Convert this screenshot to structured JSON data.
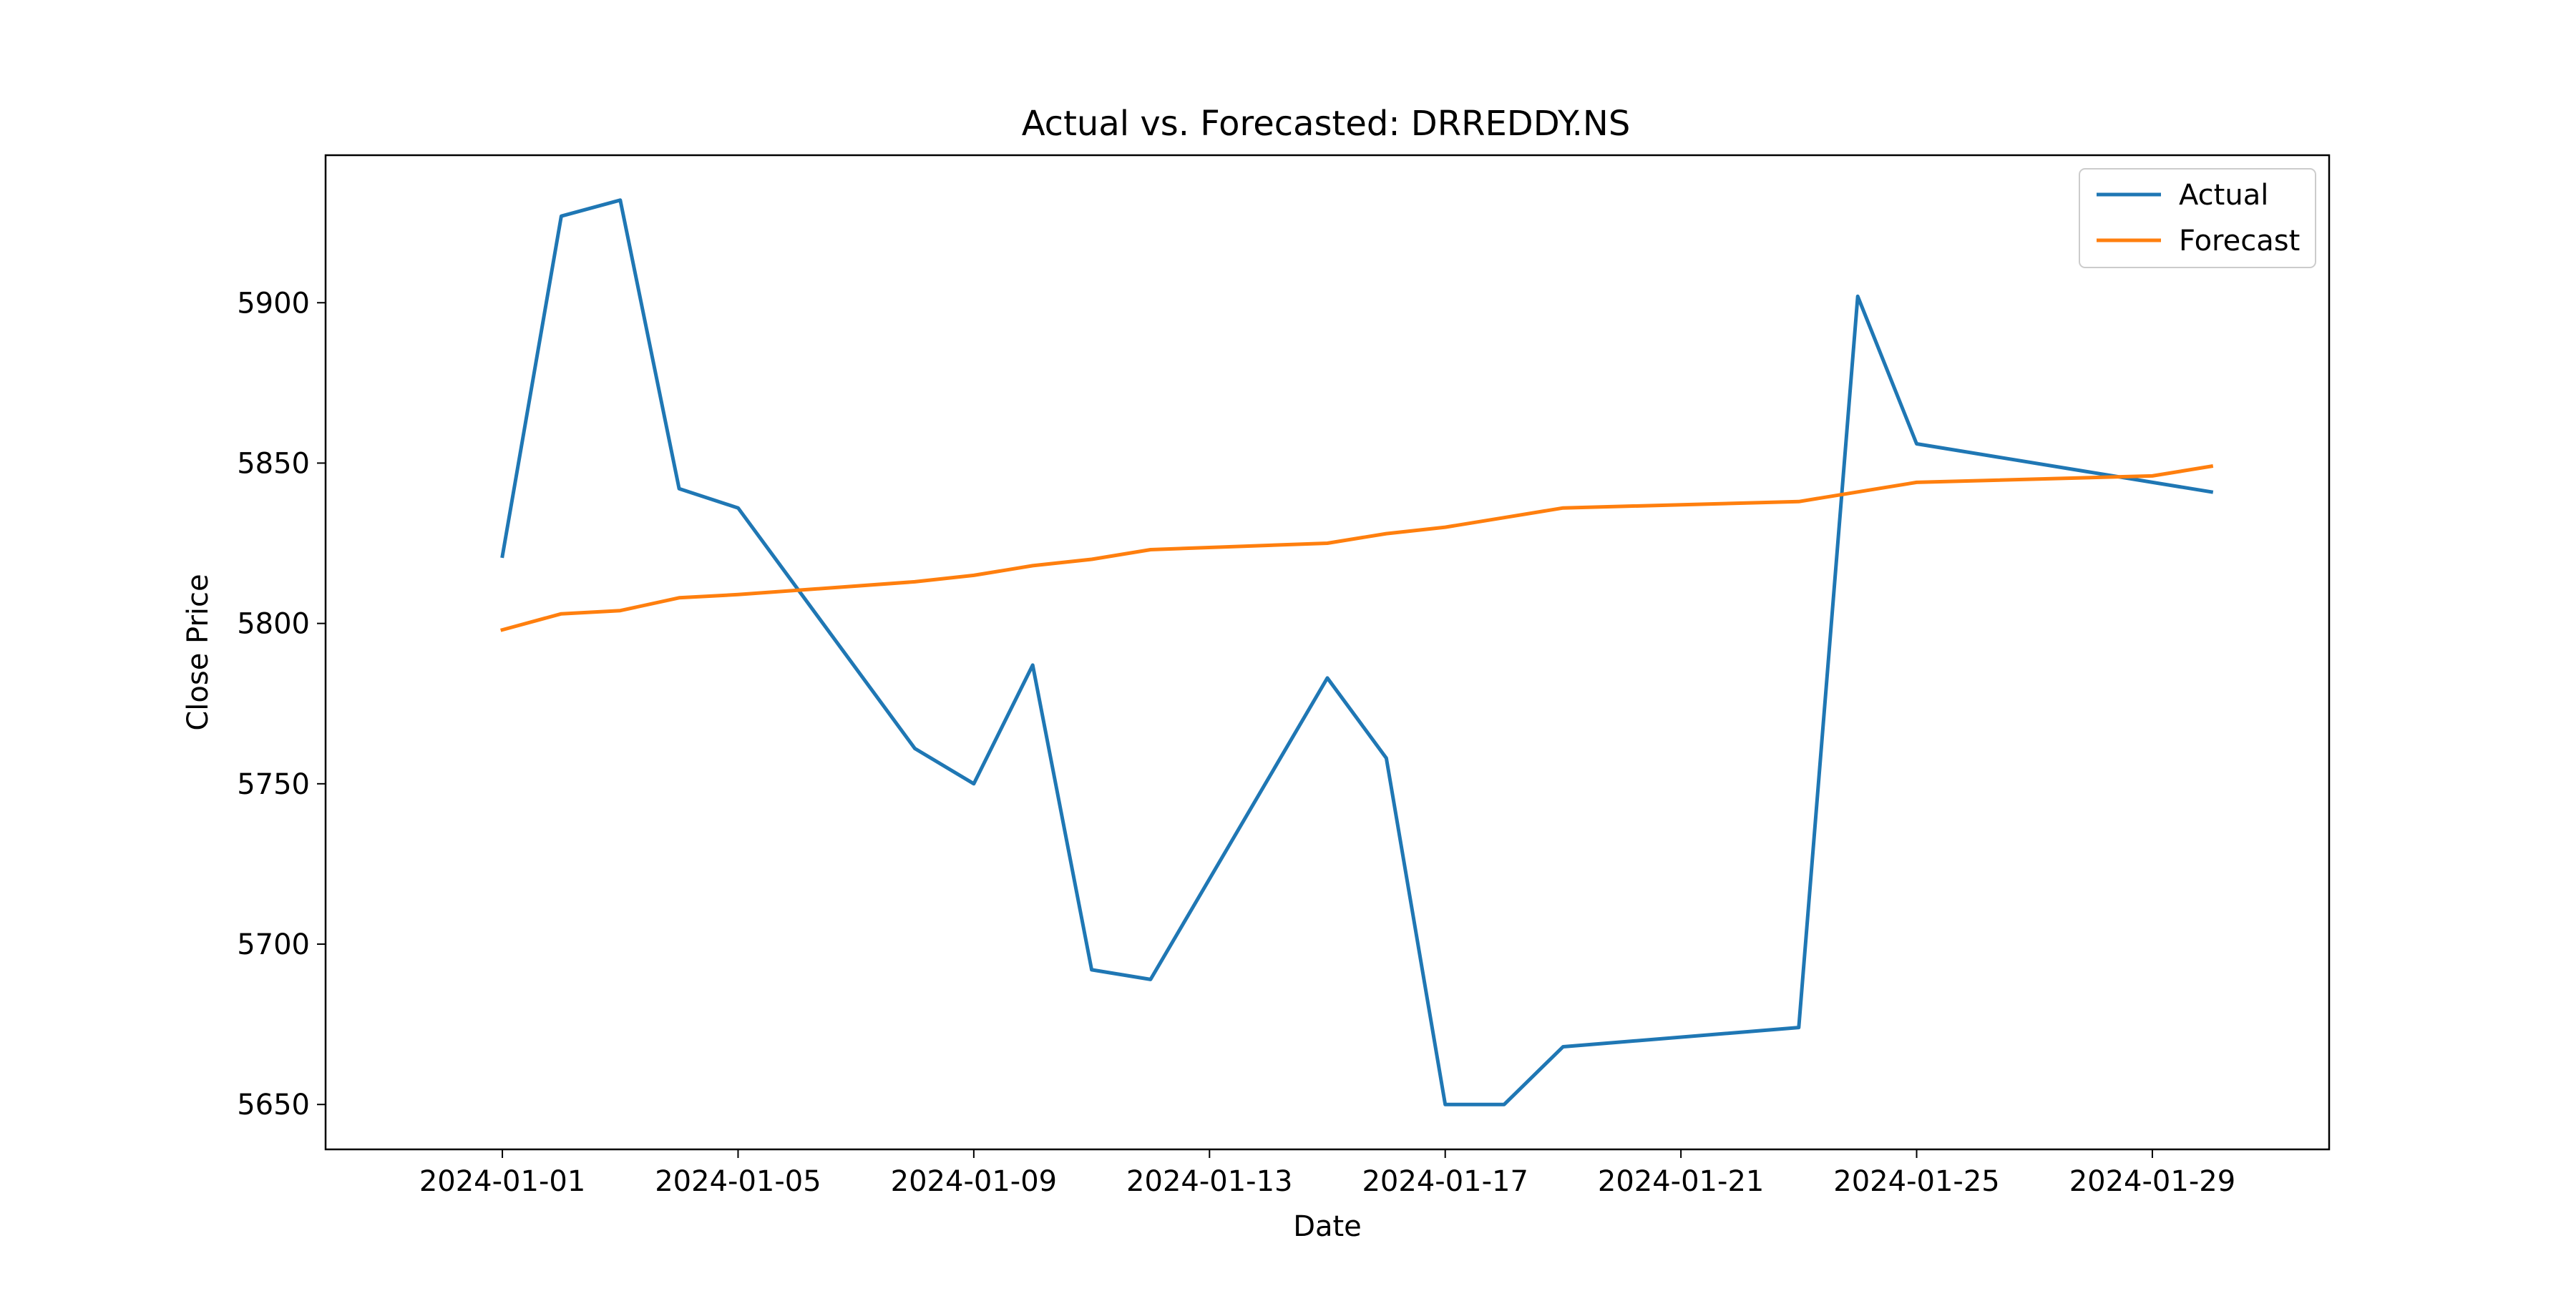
{
  "chart_data": {
    "type": "line",
    "title": "Actual vs. Forecasted: DRREDDY.NS",
    "xlabel": "Date",
    "ylabel": "Close Price",
    "x_tick_labels": [
      "2024-01-01",
      "2024-01-05",
      "2024-01-09",
      "2024-01-13",
      "2024-01-17",
      "2024-01-21",
      "2024-01-25",
      "2024-01-29"
    ],
    "y_ticks": [
      5650,
      5700,
      5750,
      5800,
      5850,
      5900
    ],
    "xlim": [
      "2023-12-29",
      "2024-02-01"
    ],
    "ylim": [
      5636,
      5946
    ],
    "grid": false,
    "legend_position": "top-right",
    "series": [
      {
        "name": "Actual",
        "color": "#1f77b4",
        "points": [
          [
            "2024-01-01",
            5821
          ],
          [
            "2024-01-02",
            5927
          ],
          [
            "2024-01-03",
            5932
          ],
          [
            "2024-01-04",
            5842
          ],
          [
            "2024-01-05",
            5836
          ],
          [
            "2024-01-08",
            5761
          ],
          [
            "2024-01-09",
            5750
          ],
          [
            "2024-01-10",
            5787
          ],
          [
            "2024-01-11",
            5692
          ],
          [
            "2024-01-12",
            5689
          ],
          [
            "2024-01-15",
            5783
          ],
          [
            "2024-01-16",
            5758
          ],
          [
            "2024-01-17",
            5650
          ],
          [
            "2024-01-18",
            5650
          ],
          [
            "2024-01-19",
            5668
          ],
          [
            "2024-01-23",
            5674
          ],
          [
            "2024-01-24",
            5902
          ],
          [
            "2024-01-25",
            5856
          ],
          [
            "2024-01-30",
            5841
          ]
        ]
      },
      {
        "name": "Forecast",
        "color": "#ff7f0e",
        "points": [
          [
            "2024-01-01",
            5798
          ],
          [
            "2024-01-02",
            5803
          ],
          [
            "2024-01-03",
            5804
          ],
          [
            "2024-01-04",
            5808
          ],
          [
            "2024-01-05",
            5809
          ],
          [
            "2024-01-08",
            5813
          ],
          [
            "2024-01-09",
            5815
          ],
          [
            "2024-01-10",
            5818
          ],
          [
            "2024-01-11",
            5820
          ],
          [
            "2024-01-12",
            5823
          ],
          [
            "2024-01-15",
            5825
          ],
          [
            "2024-01-16",
            5828
          ],
          [
            "2024-01-17",
            5830
          ],
          [
            "2024-01-18",
            5833
          ],
          [
            "2024-01-19",
            5836
          ],
          [
            "2024-01-23",
            5838
          ],
          [
            "2024-01-24",
            5841
          ],
          [
            "2024-01-25",
            5844
          ],
          [
            "2024-01-29",
            5846
          ],
          [
            "2024-01-30",
            5849
          ]
        ]
      }
    ]
  }
}
